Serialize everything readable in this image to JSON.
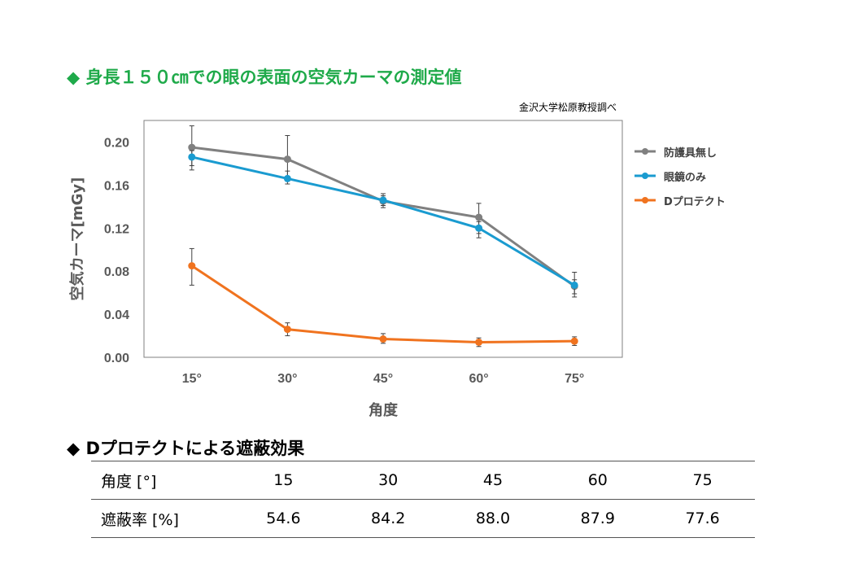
{
  "header": {
    "marker": "◆",
    "title": "身長１５０㎝での眼の表面の空気カーマの測定値",
    "source": "金沢大学松原教授調べ"
  },
  "chart_data": {
    "type": "line",
    "categories": [
      "15°",
      "30°",
      "45°",
      "60°",
      "75°"
    ],
    "xlabel": "角度",
    "ylabel": "空気カーマ[mGy]",
    "ylim": [
      0,
      0.22
    ],
    "yticks": [
      "0.00",
      "0.04",
      "0.08",
      "0.12",
      "0.16",
      "0.20"
    ],
    "ytick_values": [
      0,
      0.04,
      0.08,
      0.12,
      0.16,
      0.2
    ],
    "legend_position": "right",
    "grid": false,
    "series": [
      {
        "name": "防護具無し",
        "color": "#808080",
        "values": [
          0.195,
          0.184,
          0.145,
          0.13,
          0.066
        ],
        "err_low": [
          0.178,
          0.166,
          0.141,
          0.115,
          0.056
        ],
        "err_high": [
          0.215,
          0.206,
          0.152,
          0.143,
          0.079
        ]
      },
      {
        "name": "眼鏡のみ",
        "color": "#1a9bd0",
        "values": [
          0.186,
          0.166,
          0.146,
          0.12,
          0.067
        ],
        "err_low": [
          0.174,
          0.161,
          0.139,
          0.111,
          0.059
        ],
        "err_high": [
          0.192,
          0.173,
          0.15,
          0.126,
          0.072
        ]
      },
      {
        "name": "Dプロテクト",
        "color": "#f0731f",
        "values": [
          0.085,
          0.026,
          0.017,
          0.014,
          0.015
        ],
        "err_low": [
          0.067,
          0.02,
          0.013,
          0.01,
          0.011
        ],
        "err_high": [
          0.101,
          0.032,
          0.022,
          0.018,
          0.019
        ]
      }
    ]
  },
  "effect": {
    "marker": "◆",
    "title": "Dプロテクトによる遮蔽効果",
    "row1_label": "角度 [°]",
    "angles": [
      "15",
      "30",
      "45",
      "60",
      "75"
    ],
    "row2_label": "遮蔽率 [%]",
    "rates": [
      "54.6",
      "84.2",
      "88.0",
      "87.9",
      "77.6"
    ]
  }
}
